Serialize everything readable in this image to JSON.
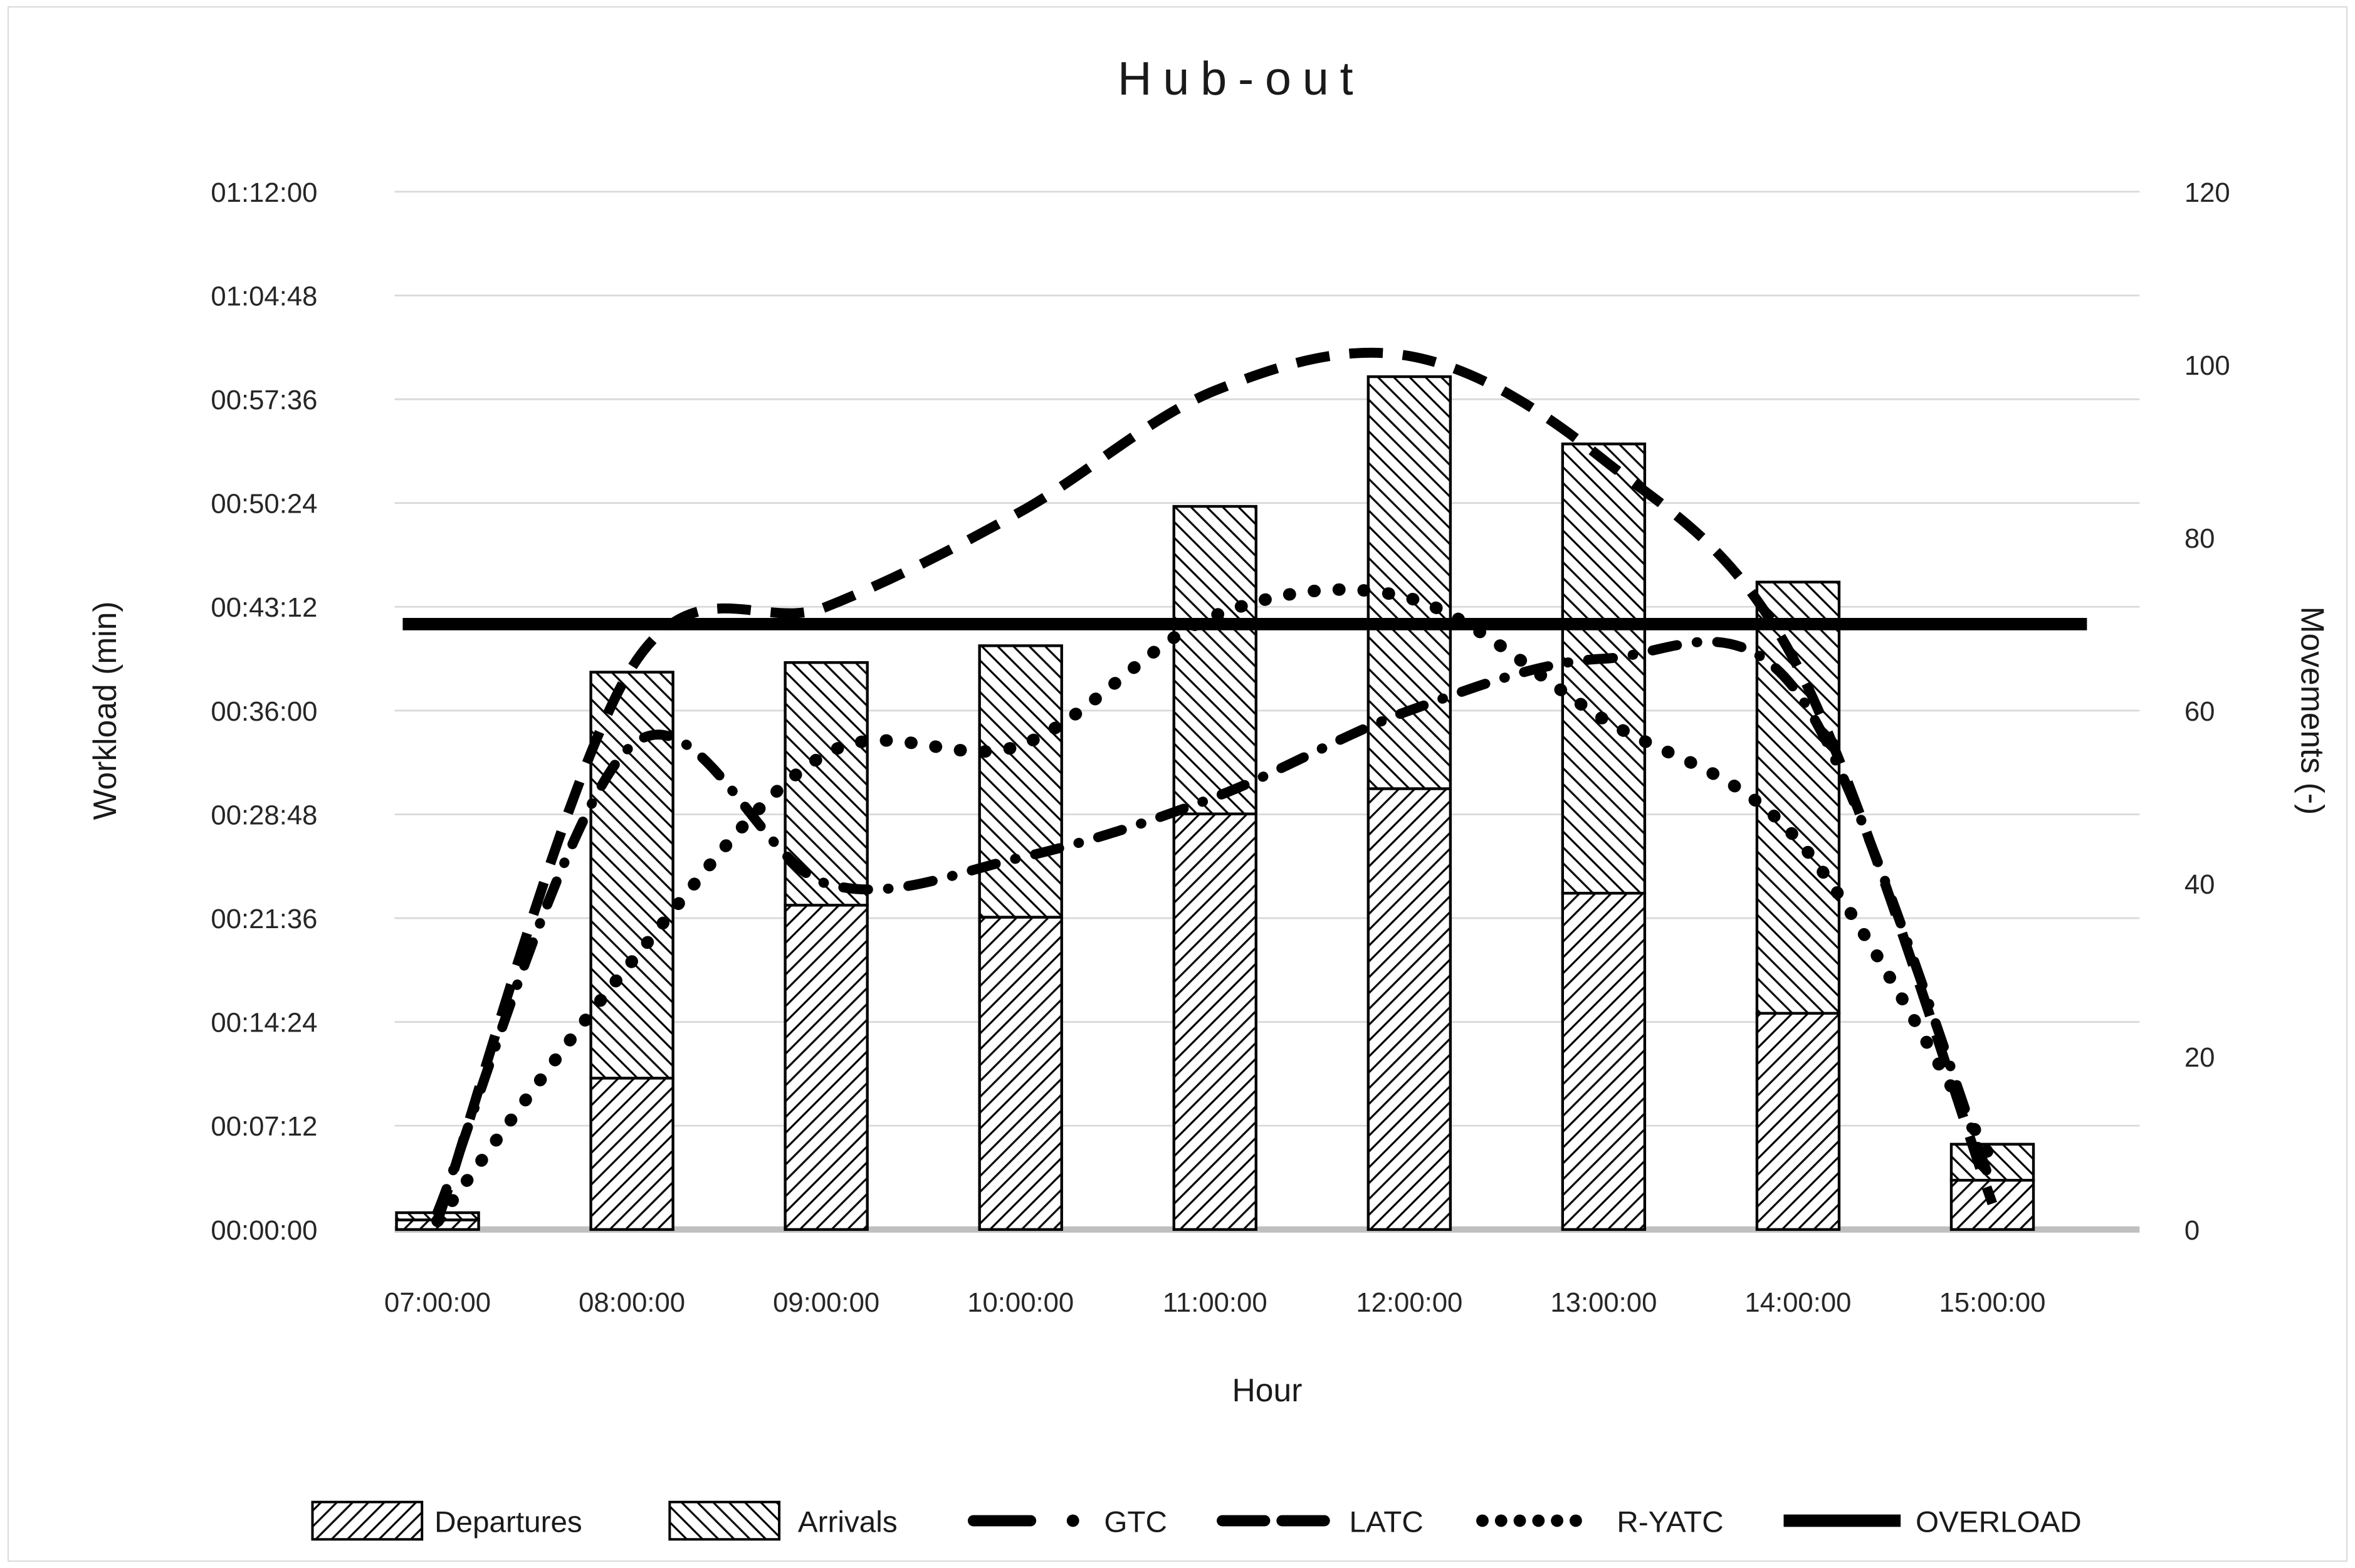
{
  "title": "Hub-out",
  "chart_data": {
    "type": "combo-stacked-bar-line",
    "title": "Hub-out",
    "categories": [
      "07:00:00",
      "08:00:00",
      "09:00:00",
      "10:00:00",
      "11:00:00",
      "12:00:00",
      "13:00:00",
      "14:00:00",
      "15:00:00"
    ],
    "bar_series": [
      {
        "name": "Departures",
        "axis": "left",
        "hatch": "diagonal-up",
        "stack_position": "bottom",
        "values_hms": [
          "00:00:40",
          "00:10:30",
          "00:22:30",
          "00:21:40",
          "00:28:50",
          "00:30:35",
          "00:23:20",
          "00:15:00",
          "00:03:25"
        ],
        "values_seconds": [
          40,
          630,
          1350,
          1300,
          1730,
          1835,
          1400,
          900,
          205
        ]
      },
      {
        "name": "Arrivals",
        "axis": "left",
        "hatch": "diagonal-down",
        "stack_position": "top",
        "values_hms": [
          "00:00:30",
          "00:28:10",
          "00:16:50",
          "00:18:50",
          "00:21:20",
          "00:28:35",
          "00:31:10",
          "00:29:55",
          "00:02:30"
        ],
        "values_seconds": [
          30,
          1690,
          1010,
          1130,
          1280,
          1715,
          1870,
          1795,
          150
        ]
      }
    ],
    "line_series": [
      {
        "name": "GTC",
        "axis": "right",
        "style": "dash-dot",
        "values": [
          2,
          56,
          40,
          43,
          50,
          60,
          66,
          62,
          5
        ]
      },
      {
        "name": "LATC",
        "axis": "right",
        "style": "dashed",
        "values": [
          1,
          65,
          72,
          83,
          97,
          101,
          89,
          65,
          3
        ]
      },
      {
        "name": "R-YATC",
        "axis": "right",
        "style": "dotted",
        "values": [
          1,
          31,
          55,
          56,
          71,
          73,
          59,
          45,
          8
        ]
      }
    ],
    "overload": {
      "name": "OVERLOAD",
      "axis": "right",
      "style": "solid",
      "value": 70
    },
    "left_axis": {
      "title": "Workload (min)",
      "unit": "h:mm:ss",
      "min": "00:00:00",
      "max": "01:12:00",
      "major_tick": "00:07:12",
      "tick_labels": [
        "00:00:00",
        "00:07:12",
        "00:14:24",
        "00:21:36",
        "00:28:48",
        "00:36:00",
        "00:43:12",
        "00:50:24",
        "00:57:36",
        "01:04:48",
        "01:12:00"
      ]
    },
    "right_axis": {
      "title": "Movements (-)",
      "min": 0,
      "max": 120,
      "major_tick": 20,
      "tick_labels": [
        "0",
        "20",
        "40",
        "60",
        "80",
        "100",
        "120"
      ]
    },
    "x_axis": {
      "title": "Hour"
    },
    "grid": true,
    "legend_position": "bottom"
  },
  "legend": {
    "items": [
      {
        "key": "departures",
        "label": "Departures",
        "swatch": "hatch-up"
      },
      {
        "key": "arrivals",
        "label": "Arrivals",
        "swatch": "hatch-down"
      },
      {
        "key": "gtc",
        "label": "GTC",
        "swatch": "dash-dot"
      },
      {
        "key": "latc",
        "label": "LATC",
        "swatch": "dashed"
      },
      {
        "key": "ryatc",
        "label": "R-YATC",
        "swatch": "dotted"
      },
      {
        "key": "overload",
        "label": "OVERLOAD",
        "swatch": "solid"
      }
    ]
  },
  "colors": {
    "series": "#000000",
    "grid": "#d9d9d9",
    "baseline": "#bfbfbf",
    "text": "#1a1a1a",
    "background": "#ffffff",
    "frame": "#d9d9d9"
  }
}
